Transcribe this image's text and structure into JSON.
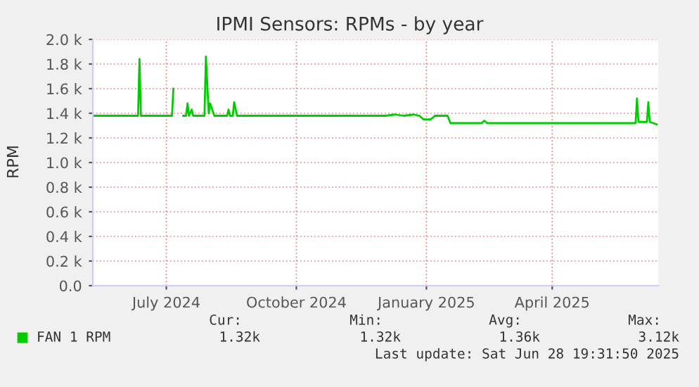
{
  "chart_data": {
    "type": "line",
    "title": "IPMI Sensors: RPMs - by year",
    "ylabel": "RPM",
    "x": [
      "2024-05-25",
      "2024-06-26",
      "2024-06-27",
      "2024-06-28",
      "2024-07-20",
      "2024-07-21",
      "2024-07-24",
      "2024-07-28",
      "2024-07-30",
      "2024-07-31",
      "2024-08-01",
      "2024-08-03",
      "2024-08-04",
      "2024-08-12",
      "2024-08-13",
      "2024-08-15",
      "2024-08-16",
      "2024-08-19",
      "2024-08-28",
      "2024-08-29",
      "2024-08-30",
      "2024-09-01",
      "2024-09-02",
      "2024-09-04",
      "2024-12-18",
      "2024-12-25",
      "2024-12-31",
      "2025-01-07",
      "2025-01-11",
      "2025-01-14",
      "2025-01-19",
      "2025-01-22",
      "2025-01-31",
      "2025-02-02",
      "2025-02-24",
      "2025-02-26",
      "2025-02-28",
      "2025-06-13",
      "2025-06-14",
      "2025-06-15",
      "2025-06-21",
      "2025-06-22",
      "2025-06-23",
      "2025-06-28"
    ],
    "series": [
      {
        "name": "FAN 1 RPM",
        "color": "#00cc00",
        "values": [
          1380,
          1380,
          1840,
          1380,
          1380,
          1600,
          null,
          1380,
          1380,
          1480,
          1380,
          1430,
          1380,
          1380,
          1860,
          1400,
          1480,
          1380,
          1380,
          1430,
          1380,
          1380,
          1490,
          1380,
          1380,
          1390,
          1380,
          1390,
          1380,
          1350,
          1350,
          1380,
          1380,
          1320,
          1320,
          1340,
          1320,
          1320,
          1520,
          1330,
          1330,
          1490,
          1330,
          1310
        ]
      }
    ],
    "xlim": [
      "2024-05-25",
      "2025-06-29"
    ],
    "xticks": [
      {
        "value": "2024-07-16",
        "label": "July 2024"
      },
      {
        "value": "2024-10-16",
        "label": "October 2024"
      },
      {
        "value": "2025-01-16",
        "label": "January 2025"
      },
      {
        "value": "2025-04-15",
        "label": "April 2025"
      }
    ],
    "ylim": [
      0,
      2000
    ],
    "yticks": [
      {
        "value": 0,
        "label": "0.0"
      },
      {
        "value": 200,
        "label": "0.2 k"
      },
      {
        "value": 400,
        "label": "0.4 k"
      },
      {
        "value": 600,
        "label": "0.6 k"
      },
      {
        "value": 800,
        "label": "0.8 k"
      },
      {
        "value": 1000,
        "label": "1.0 k"
      },
      {
        "value": 1200,
        "label": "1.2 k"
      },
      {
        "value": 1400,
        "label": "1.4 k"
      },
      {
        "value": 1600,
        "label": "1.6 k"
      },
      {
        "value": 1800,
        "label": "1.8 k"
      },
      {
        "value": 2000,
        "label": "2.0 k"
      }
    ],
    "grid": true,
    "legend": "bottom",
    "annotations": [
      "Cur:",
      "Min:",
      "Avg:",
      "Max:",
      "1.32k",
      "1.32k",
      "1.36k",
      "3.12k",
      "Last update: Sat Jun 28 19:31:50 2025"
    ]
  }
}
